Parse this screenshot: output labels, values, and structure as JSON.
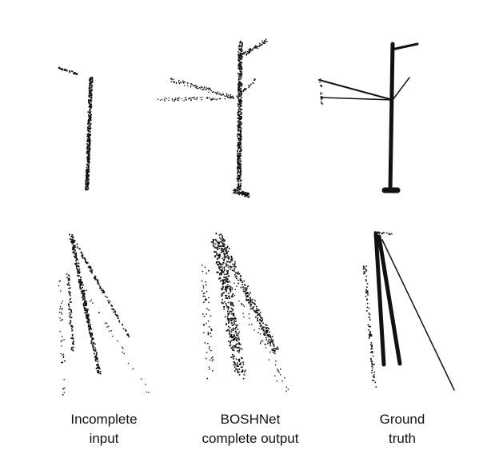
{
  "figure": {
    "columns": [
      {
        "key": "incomplete",
        "caption_lines": [
          "Incomplete",
          "input"
        ]
      },
      {
        "key": "boshnet",
        "caption_lines": [
          "BOSHNet",
          "complete output"
        ]
      },
      {
        "key": "ground_truth",
        "caption_lines": [
          "Ground",
          "truth"
        ]
      }
    ],
    "rows": [
      "side-view",
      "top-view"
    ],
    "point_color": "#111111",
    "background": "#ffffff"
  }
}
